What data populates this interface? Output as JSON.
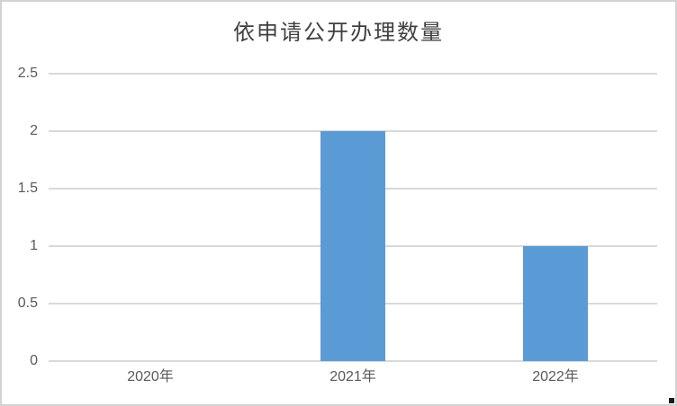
{
  "chart_data": {
    "type": "bar",
    "title": "依申请公开办理数量",
    "categories": [
      "2020年",
      "2021年",
      "2022年"
    ],
    "values": [
      0,
      2,
      1
    ],
    "series": [
      {
        "name": "依申请公开办理数量",
        "values": [
          0,
          2,
          1
        ]
      }
    ],
    "xlabel": "",
    "ylabel": "",
    "ylim": [
      0,
      2.5
    ],
    "ytick_step": 0.5,
    "ytick_labels": [
      "0",
      "0.5",
      "1",
      "1.5",
      "2",
      "2.5"
    ],
    "grid": "horizontal",
    "legend": "none",
    "colors": {
      "bar": "#5b9bd5",
      "gridline": "#d9d9d9",
      "axis_line": "#d9d9d9",
      "tick_label": "#595959",
      "title": "#404040",
      "frame_border": "#d2d2d2",
      "background": "#ffffff"
    }
  }
}
